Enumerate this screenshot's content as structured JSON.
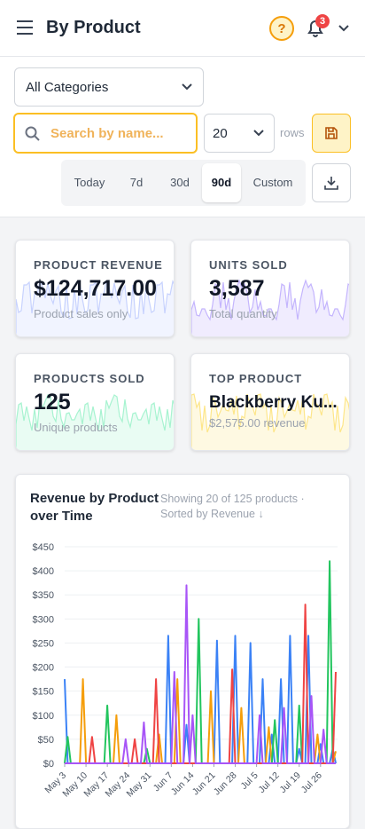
{
  "header": {
    "title": "By Product",
    "notification_count": "3"
  },
  "filters": {
    "category": "All Categories",
    "search_placeholder": "Search by name...",
    "rows_value": "20",
    "rows_label": "rows",
    "ranges": [
      "Today",
      "7d",
      "30d",
      "90d",
      "Custom"
    ],
    "active_range_index": 3
  },
  "stats": [
    {
      "label": "PRODUCT REVENUE",
      "value": "$124,717.00",
      "note": "Product sales only"
    },
    {
      "label": "UNITS SOLD",
      "value": "3,587",
      "note": "Total quantity"
    },
    {
      "label": "PRODUCTS SOLD",
      "value": "125",
      "note": "Unique products"
    },
    {
      "label": "TOP PRODUCT",
      "value": "Blackberry Ku...",
      "note": "$2,575.00 revenue"
    }
  ],
  "chart_data": {
    "type": "line",
    "title": "Revenue by Product over Time",
    "subtitle": "Showing 20 of 125 products · Sorted by Revenue ↓",
    "categories": [
      "May 3",
      null,
      null,
      null,
      null,
      null,
      null,
      "May 10",
      null,
      null,
      null,
      null,
      null,
      null,
      "May 17",
      null,
      null,
      null,
      null,
      null,
      null,
      "May 24",
      null,
      null,
      null,
      null,
      null,
      null,
      "May 31",
      null,
      null,
      null,
      null,
      null,
      null,
      "Jun 7",
      null,
      null,
      null,
      null,
      null,
      null,
      "Jun 14",
      null,
      null,
      null,
      null,
      null,
      null,
      "Jun 21",
      null,
      null,
      null,
      null,
      null,
      null,
      "Jun 28",
      null,
      null,
      null,
      null,
      null,
      null,
      "Jul 5",
      null,
      null,
      null,
      null,
      null,
      null,
      "Jul 12",
      null,
      null,
      null,
      null,
      null,
      null,
      "Jul 19",
      null,
      null,
      null,
      null,
      null,
      null,
      "Jul 26",
      null,
      null,
      null,
      null,
      null
    ],
    "series": [
      {
        "color": "#3b82f6",
        "values": [
          175,
          0,
          0,
          0,
          0,
          0,
          0,
          0,
          0,
          0,
          0,
          0,
          0,
          0,
          0,
          0,
          0,
          0,
          0,
          0,
          0,
          0,
          0,
          0,
          0,
          0,
          0,
          0,
          0,
          0,
          0,
          0,
          0,
          0,
          265,
          0,
          0,
          0,
          0,
          0,
          80,
          0,
          0,
          0,
          0,
          0,
          0,
          0,
          0,
          0,
          255,
          0,
          0,
          0,
          0,
          0,
          265,
          0,
          0,
          0,
          0,
          250,
          0,
          0,
          0,
          175,
          0,
          0,
          60,
          0,
          0,
          175,
          0,
          0,
          265,
          0,
          0,
          30,
          0,
          0,
          265,
          0,
          0,
          0,
          40,
          0,
          0,
          0,
          30,
          0
        ]
      },
      {
        "color": "#f59e0b",
        "values": [
          0,
          0,
          0,
          0,
          0,
          0,
          175,
          0,
          0,
          0,
          0,
          0,
          0,
          0,
          0,
          0,
          0,
          100,
          0,
          0,
          0,
          0,
          0,
          0,
          0,
          0,
          0,
          0,
          0,
          0,
          0,
          60,
          0,
          0,
          0,
          0,
          0,
          175,
          0,
          0,
          0,
          0,
          0,
          0,
          0,
          0,
          0,
          0,
          150,
          0,
          0,
          0,
          0,
          0,
          0,
          0,
          0,
          0,
          115,
          0,
          0,
          0,
          0,
          0,
          0,
          0,
          0,
          75,
          0,
          0,
          0,
          0,
          0,
          0,
          0,
          0,
          0,
          0,
          0,
          0,
          0,
          0,
          0,
          60,
          0,
          0,
          0,
          0,
          0,
          25
        ]
      },
      {
        "color": "#22c55e",
        "values": [
          0,
          55,
          0,
          0,
          0,
          0,
          0,
          0,
          0,
          0,
          0,
          0,
          0,
          0,
          120,
          0,
          0,
          0,
          0,
          0,
          0,
          0,
          0,
          0,
          0,
          0,
          0,
          30,
          0,
          0,
          0,
          0,
          0,
          0,
          0,
          0,
          0,
          0,
          0,
          0,
          0,
          0,
          0,
          0,
          300,
          0,
          0,
          0,
          0,
          0,
          0,
          0,
          0,
          0,
          0,
          0,
          0,
          0,
          0,
          0,
          0,
          0,
          0,
          0,
          0,
          0,
          0,
          0,
          0,
          90,
          0,
          0,
          0,
          0,
          0,
          0,
          0,
          120,
          0,
          0,
          0,
          0,
          0,
          0,
          0,
          0,
          0,
          420,
          0,
          0
        ]
      },
      {
        "color": "#ef4444",
        "values": [
          0,
          0,
          0,
          0,
          0,
          0,
          0,
          0,
          0,
          55,
          0,
          0,
          0,
          0,
          0,
          0,
          0,
          0,
          0,
          0,
          0,
          0,
          0,
          50,
          0,
          0,
          0,
          0,
          0,
          0,
          175,
          0,
          0,
          0,
          0,
          0,
          0,
          0,
          0,
          0,
          0,
          0,
          0,
          0,
          0,
          0,
          0,
          0,
          0,
          0,
          0,
          0,
          0,
          0,
          0,
          195,
          0,
          0,
          0,
          0,
          0,
          0,
          0,
          0,
          0,
          0,
          0,
          0,
          0,
          0,
          0,
          0,
          0,
          0,
          0,
          0,
          0,
          0,
          0,
          330,
          0,
          0,
          0,
          0,
          0,
          0,
          0,
          0,
          0,
          190
        ]
      },
      {
        "color": "#a855f7",
        "values": [
          0,
          0,
          0,
          0,
          0,
          0,
          0,
          0,
          0,
          0,
          0,
          0,
          0,
          0,
          0,
          0,
          0,
          0,
          0,
          0,
          50,
          0,
          0,
          0,
          0,
          0,
          85,
          0,
          0,
          0,
          0,
          0,
          0,
          0,
          0,
          0,
          190,
          0,
          0,
          0,
          370,
          0,
          100,
          0,
          0,
          0,
          0,
          0,
          0,
          0,
          0,
          0,
          0,
          0,
          0,
          0,
          0,
          0,
          0,
          0,
          0,
          0,
          0,
          0,
          100,
          0,
          0,
          0,
          0,
          0,
          0,
          0,
          115,
          0,
          0,
          0,
          0,
          0,
          0,
          0,
          0,
          140,
          0,
          0,
          0,
          70,
          0,
          0,
          0,
          0
        ]
      }
    ],
    "ylim": [
      0,
      450
    ],
    "yticks": [
      {
        "value": 0,
        "label": "$0"
      },
      {
        "value": 50,
        "label": "$50"
      },
      {
        "value": 100,
        "label": "$100"
      },
      {
        "value": 150,
        "label": "$150"
      },
      {
        "value": 200,
        "label": "$200"
      },
      {
        "value": 250,
        "label": "$250"
      },
      {
        "value": 300,
        "label": "$300"
      },
      {
        "value": 350,
        "label": "$350"
      },
      {
        "value": 400,
        "label": "$400"
      },
      {
        "value": 450,
        "label": "$450"
      }
    ],
    "grid": true
  }
}
